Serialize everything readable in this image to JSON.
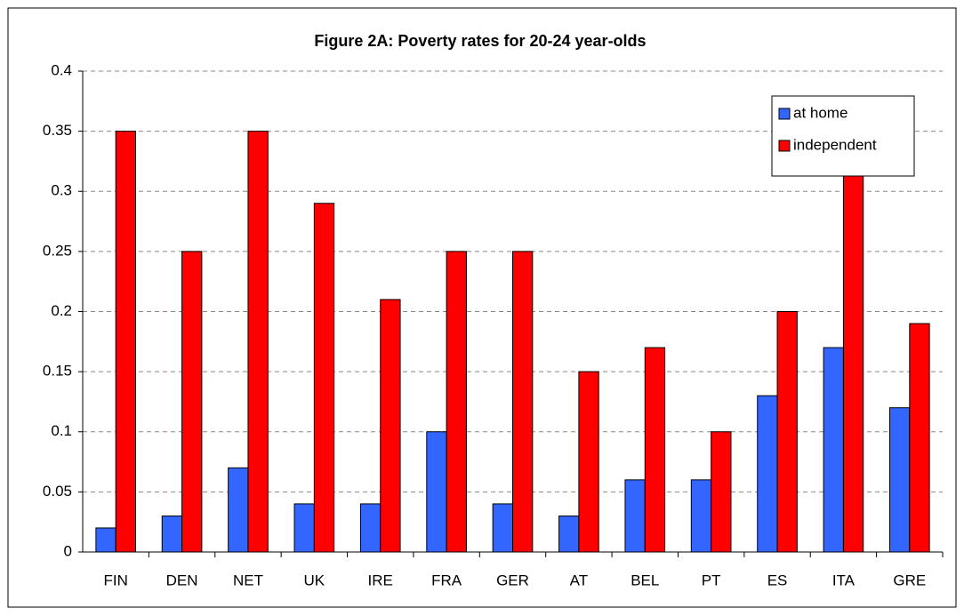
{
  "chart_data": {
    "type": "bar",
    "title": "Figure 2A: Poverty rates for 20-24 year-olds",
    "categories": [
      "FIN",
      "DEN",
      "NET",
      "UK",
      "IRE",
      "FRA",
      "GER",
      "AT",
      "BEL",
      "PT",
      "ES",
      "ITA",
      "GRE"
    ],
    "series": [
      {
        "name": "at home",
        "color": "#3366ff",
        "values": [
          0.02,
          0.03,
          0.07,
          0.04,
          0.04,
          0.1,
          0.04,
          0.03,
          0.06,
          0.06,
          0.13,
          0.17,
          0.12
        ]
      },
      {
        "name": "independent",
        "color": "#ff0000",
        "values": [
          0.35,
          0.25,
          0.35,
          0.29,
          0.21,
          0.25,
          0.25,
          0.15,
          0.17,
          0.1,
          0.2,
          0.32,
          0.19
        ]
      }
    ],
    "ylim": [
      0,
      0.4
    ],
    "yticks": [
      0,
      0.05,
      0.1,
      0.15,
      0.2,
      0.25,
      0.3,
      0.35,
      0.4
    ],
    "grid": true,
    "legend": "upper right"
  }
}
